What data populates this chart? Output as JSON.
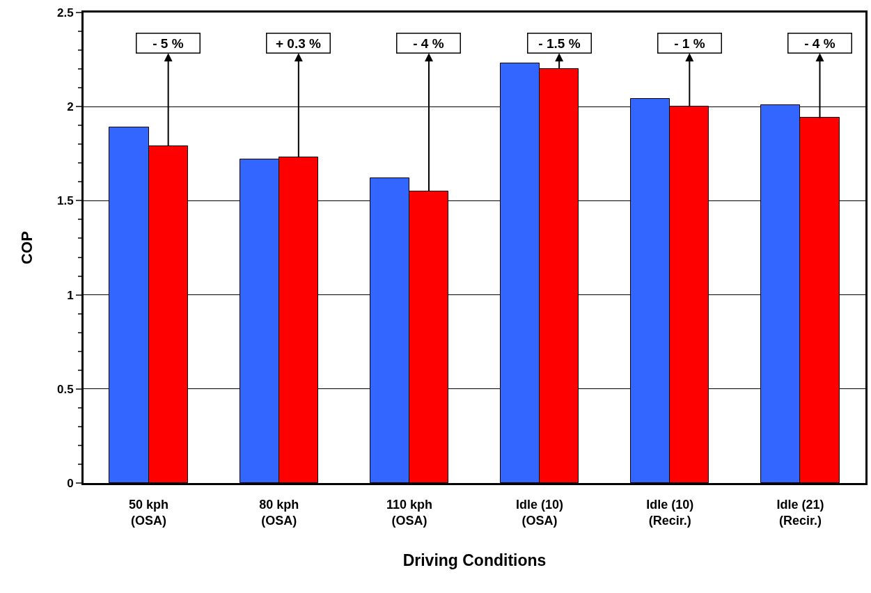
{
  "chart_data": {
    "type": "bar",
    "xlabel": "Driving Conditions",
    "ylabel": "COP",
    "categories": [
      "50 kph\n(OSA)",
      "80 kph\n(OSA)",
      "110 kph\n(OSA)",
      "Idle (10)\n(OSA)",
      "Idle (10)\n(Recir.)",
      "Idle (21)\n(Recir.)"
    ],
    "series": [
      {
        "color": "#3366ff",
        "values": [
          1.89,
          1.72,
          1.62,
          2.23,
          2.04,
          2.01
        ]
      },
      {
        "color": "#ff0000",
        "values": [
          1.79,
          1.73,
          1.55,
          2.2,
          2.0,
          1.94
        ]
      }
    ],
    "ylim": [
      0,
      2.5
    ],
    "yticks": [
      0,
      0.5,
      1,
      1.5,
      2,
      2.5
    ],
    "grid": "y",
    "annotations": [
      "- 5 %",
      "+ 0.3 %",
      "- 4 %",
      "- 1.5 %",
      "- 1 %",
      "- 4 %"
    ]
  }
}
